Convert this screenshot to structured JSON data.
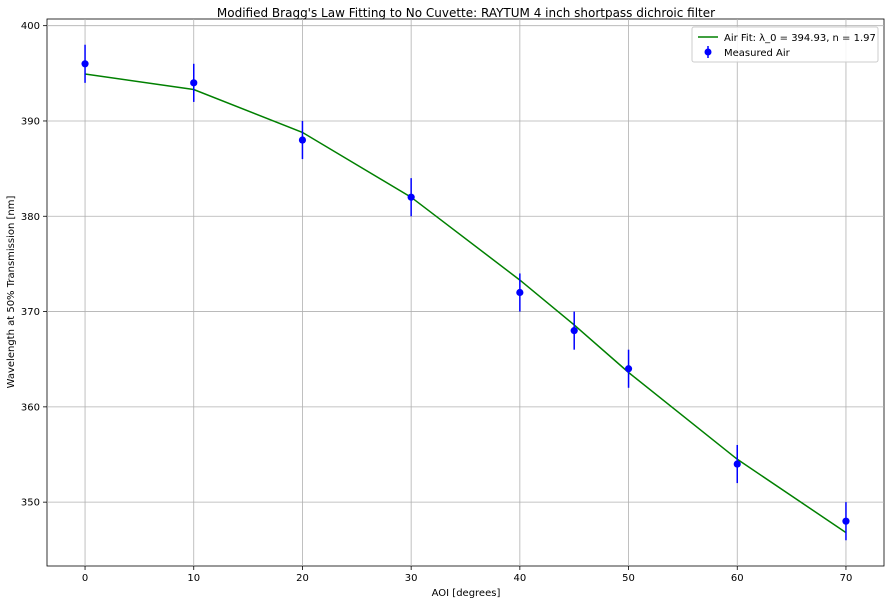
{
  "chart_data": {
    "type": "line",
    "title": "Modified Bragg's Law Fitting to No Cuvette: RAYTUM 4 inch shortpass dichroic filter",
    "xlabel": "AOI [degrees]",
    "ylabel": "Wavelength at 50% Transmission [nm]",
    "xlim": [
      -3.5,
      73.5
    ],
    "ylim": [
      343.3,
      400.7
    ],
    "xticks": [
      0,
      10,
      20,
      30,
      40,
      50,
      60,
      70
    ],
    "yticks": [
      350,
      360,
      370,
      380,
      390,
      400
    ],
    "grid": true,
    "legend_position": "top-right",
    "series": [
      {
        "name": "Air Fit: λ_0 = 394.93, n = 1.97",
        "kind": "line",
        "color": "#008000",
        "x": [
          0,
          10,
          20,
          30,
          40,
          45,
          50,
          60,
          70
        ],
        "y": [
          394.93,
          393.3,
          388.8,
          382.0,
          373.3,
          368.6,
          363.6,
          354.5,
          346.8
        ]
      },
      {
        "name": "Measured Air",
        "kind": "errorbar",
        "color": "#0000ff",
        "x": [
          0,
          10,
          20,
          30,
          40,
          45,
          50,
          60,
          70
        ],
        "y": [
          396,
          394,
          388,
          382,
          372,
          368,
          364,
          354,
          348
        ],
        "yerr": [
          2,
          2,
          2,
          2,
          2,
          2,
          2,
          2,
          2
        ]
      }
    ]
  }
}
